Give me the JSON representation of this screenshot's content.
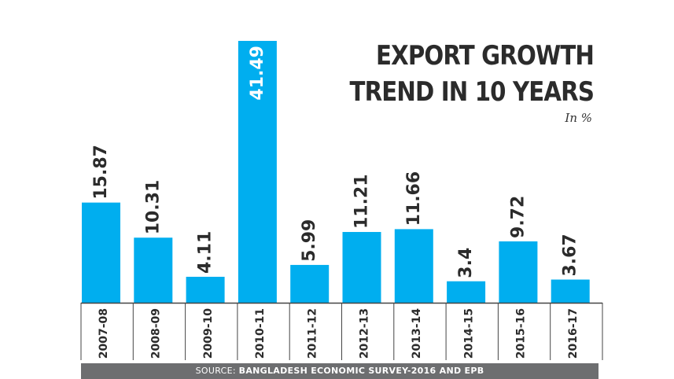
{
  "title_line1": "EXPORT GROWTH",
  "title_line2": "TREND IN 10 YEARS",
  "subtitle": "In %",
  "source_prefix": "SOURCE:",
  "source_text": "BANGLADESH ECONOMIC SURVEY-2016 AND EPB",
  "colors": {
    "bar": "#00aeef",
    "label_on_bar": "#ffffff",
    "label": "#2b2b2b",
    "axis": "#444444"
  },
  "chart_data": {
    "type": "bar",
    "categories": [
      "2007-08",
      "2008-09",
      "2009-10",
      "2010-11",
      "2011-12",
      "2012-13",
      "2013-14",
      "2014-15",
      "2015-16",
      "2016-17"
    ],
    "values": [
      15.87,
      10.31,
      4.11,
      41.49,
      5.99,
      11.21,
      11.66,
      3.4,
      9.72,
      3.67
    ],
    "value_labels": [
      "15.87",
      "10.31",
      "4.11",
      "41.49",
      "5.99",
      "11.21",
      "11.66",
      "3.4",
      "9.72",
      "3.67"
    ],
    "title": "EXPORT GROWTH TREND IN 10 YEARS",
    "ylabel": "In %",
    "ylim": [
      0,
      41.49
    ],
    "grid": false,
    "legend": "none"
  }
}
